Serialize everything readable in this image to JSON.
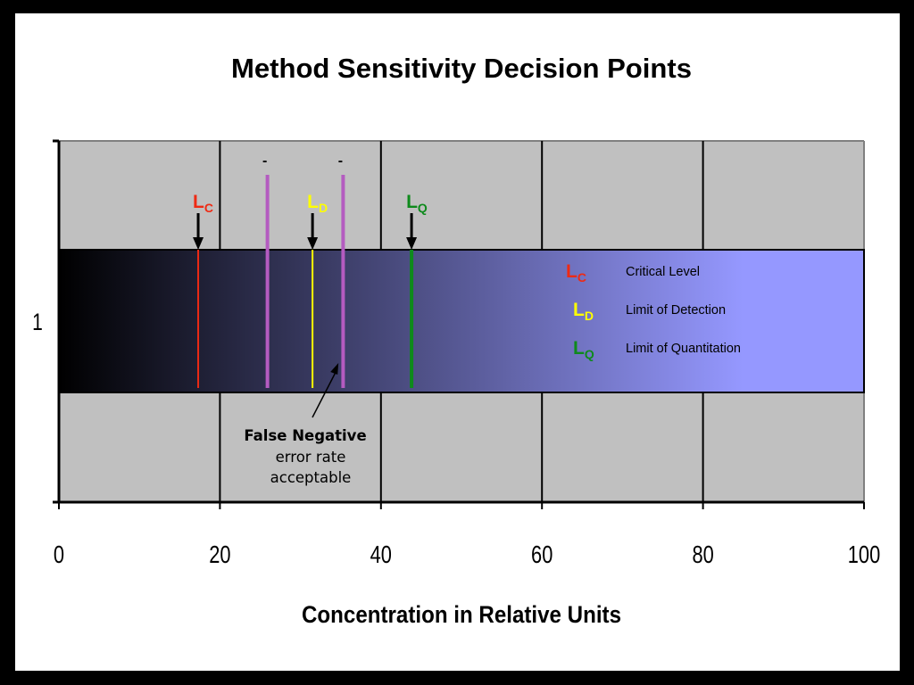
{
  "chart_data": {
    "type": "bar",
    "title": "Method Sensitivity Decision Points",
    "xlabel": "Concentration in Relative Units",
    "ylabel": "",
    "xlim": [
      0,
      100
    ],
    "x_ticks": [
      "0",
      "20",
      "40",
      "60",
      "80",
      "100"
    ],
    "categories": [
      "1"
    ],
    "grid": true,
    "gradient_colors": [
      "#000000",
      "#9598ff"
    ],
    "decision_points": [
      {
        "key": "lc",
        "main": "L",
        "sub": "C",
        "value": 17.3,
        "color": "#ee2a14",
        "name": "Critical Level"
      },
      {
        "key": "ld",
        "main": "L",
        "sub": "D",
        "value": 31.5,
        "color": "#ffff00",
        "name": "Limit of Detection"
      },
      {
        "key": "lq",
        "main": "L",
        "sub": "Q",
        "value": 43.8,
        "color": "#0e8a1c",
        "name": "Limit of Quantitation"
      }
    ],
    "bounds": [
      {
        "label": "-",
        "value": 25.9,
        "color": "#b45bc0"
      },
      {
        "label": "-",
        "value": 35.3,
        "color": "#b45bc0"
      }
    ],
    "annotation": {
      "bold": "False Negative",
      "line1": "error rate",
      "line2": "acceptable",
      "arrow_target_value": 34.5
    },
    "legend_position": "right, inside bar"
  }
}
